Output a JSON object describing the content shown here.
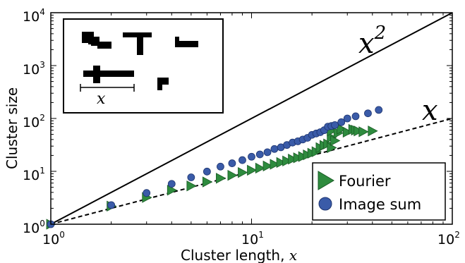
{
  "chart_data": {
    "type": "scatter",
    "title": "",
    "xlabel": "Cluster length, ",
    "xlabel_var": "x",
    "ylabel": "Cluster size",
    "xscale": "log",
    "yscale": "log",
    "xlim": [
      1,
      100
    ],
    "ylim": [
      1,
      10000
    ],
    "x_ticks": [
      {
        "base": "10",
        "exp": "0",
        "value": 1
      },
      {
        "base": "10",
        "exp": "1",
        "value": 10
      },
      {
        "base": "10",
        "exp": "2",
        "value": 100
      }
    ],
    "y_ticks": [
      {
        "base": "10",
        "exp": "0",
        "value": 1
      },
      {
        "base": "10",
        "exp": "1",
        "value": 10
      },
      {
        "base": "10",
        "exp": "2",
        "value": 100
      },
      {
        "base": "10",
        "exp": "3",
        "value": 1000
      },
      {
        "base": "10",
        "exp": "4",
        "value": 10000
      }
    ],
    "reference_lines": [
      {
        "label_base": "x",
        "label_exp": "2",
        "power": 2,
        "style": "solid"
      },
      {
        "label_base": "x",
        "label_exp": "",
        "power": 1,
        "style": "dashed"
      }
    ],
    "legend": {
      "placement": "bottom-right"
    },
    "series": [
      {
        "name": "Fourier",
        "marker": "triangle-right",
        "color": "#2e8b3e",
        "points": [
          [
            1,
            1.0
          ],
          [
            2,
            2.2
          ],
          [
            3,
            3.2
          ],
          [
            4,
            4.4
          ],
          [
            5,
            5.3
          ],
          [
            6,
            6.3
          ],
          [
            7,
            7.4
          ],
          [
            8,
            8.4
          ],
          [
            9,
            9.5
          ],
          [
            10,
            10.5
          ],
          [
            11,
            11.5
          ],
          [
            12,
            12.6
          ],
          [
            13,
            13.6
          ],
          [
            14,
            14.7
          ],
          [
            15,
            15.7
          ],
          [
            16,
            17
          ],
          [
            17,
            18
          ],
          [
            18,
            19
          ],
          [
            19,
            20.5
          ],
          [
            20,
            22
          ],
          [
            21,
            23.5
          ],
          [
            22,
            28
          ],
          [
            23,
            31
          ],
          [
            24,
            33
          ],
          [
            25,
            28
          ],
          [
            25,
            44
          ],
          [
            25,
            58
          ],
          [
            26,
            38
          ],
          [
            27,
            53
          ],
          [
            28,
            63
          ],
          [
            30,
            55
          ],
          [
            32,
            62
          ],
          [
            33,
            60
          ],
          [
            34,
            58
          ],
          [
            36,
            56
          ],
          [
            40,
            58
          ]
        ]
      },
      {
        "name": "Image sum",
        "marker": "circle",
        "color": "#3a5ba8",
        "points": [
          [
            1,
            1.0
          ],
          [
            2,
            2.3
          ],
          [
            3,
            3.9
          ],
          [
            4,
            5.8
          ],
          [
            5,
            7.7
          ],
          [
            6,
            9.9
          ],
          [
            7,
            12.3
          ],
          [
            8,
            14.2
          ],
          [
            9,
            16.3
          ],
          [
            10,
            18.9
          ],
          [
            11,
            20.9
          ],
          [
            12,
            23
          ],
          [
            13,
            26.5
          ],
          [
            14,
            28.5
          ],
          [
            15,
            31.5
          ],
          [
            16,
            35
          ],
          [
            17,
            37
          ],
          [
            18,
            40
          ],
          [
            19,
            43
          ],
          [
            20,
            49
          ],
          [
            21,
            52
          ],
          [
            22,
            55
          ],
          [
            23,
            60
          ],
          [
            24,
            70
          ],
          [
            25,
            72
          ],
          [
            26,
            75
          ],
          [
            28,
            85
          ],
          [
            30,
            100
          ],
          [
            33,
            110
          ],
          [
            38,
            125
          ],
          [
            43,
            145
          ]
        ]
      }
    ]
  },
  "inset": {
    "shapes": "cluster-shapes",
    "scale_label": "x"
  }
}
